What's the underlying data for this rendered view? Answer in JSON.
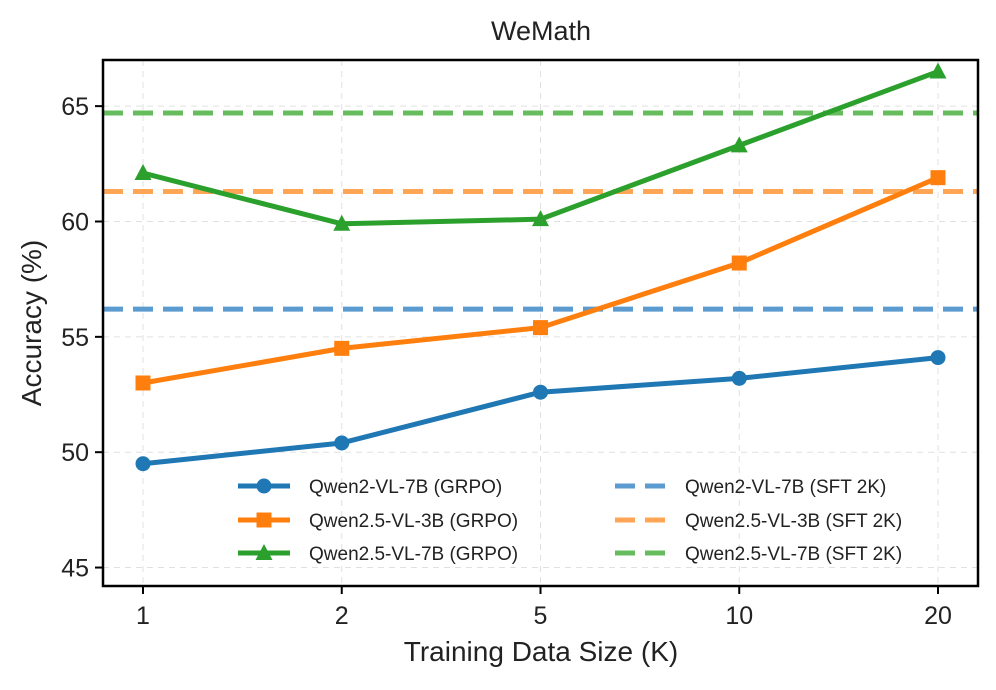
{
  "chart_data": {
    "type": "line",
    "title": "WeMath",
    "xlabel": "Training Data Size (K)",
    "ylabel": "Accuracy (%)",
    "categories": [
      "1",
      "2",
      "5",
      "10",
      "20"
    ],
    "ylim": [
      44.2,
      67.0
    ],
    "yticks": [
      45,
      50,
      55,
      60,
      65
    ],
    "grid": true,
    "legend_position": "lower-right",
    "series": [
      {
        "name": "Qwen2-VL-7B (GRPO)",
        "values": [
          49.5,
          50.4,
          52.6,
          53.2,
          54.1
        ],
        "color": "#1f77b4",
        "marker": "circle"
      },
      {
        "name": "Qwen2.5-VL-3B (GRPO)",
        "values": [
          53.0,
          54.5,
          55.4,
          58.2,
          61.9
        ],
        "color": "#ff7f0e",
        "marker": "square"
      },
      {
        "name": "Qwen2.5-VL-7B (GRPO)",
        "values": [
          62.1,
          59.9,
          60.1,
          63.3,
          66.5
        ],
        "color": "#2ca02c",
        "marker": "triangle"
      }
    ],
    "reference_lines": [
      {
        "name": "Qwen2-VL-7B (SFT 2K)",
        "value": 56.2,
        "color": "#5b9bd0"
      },
      {
        "name": "Qwen2.5-VL-3B (SFT 2K)",
        "value": 61.3,
        "color": "#ffa556"
      },
      {
        "name": "Qwen2.5-VL-7B (SFT 2K)",
        "value": 64.7,
        "color": "#67bd5e"
      }
    ]
  }
}
